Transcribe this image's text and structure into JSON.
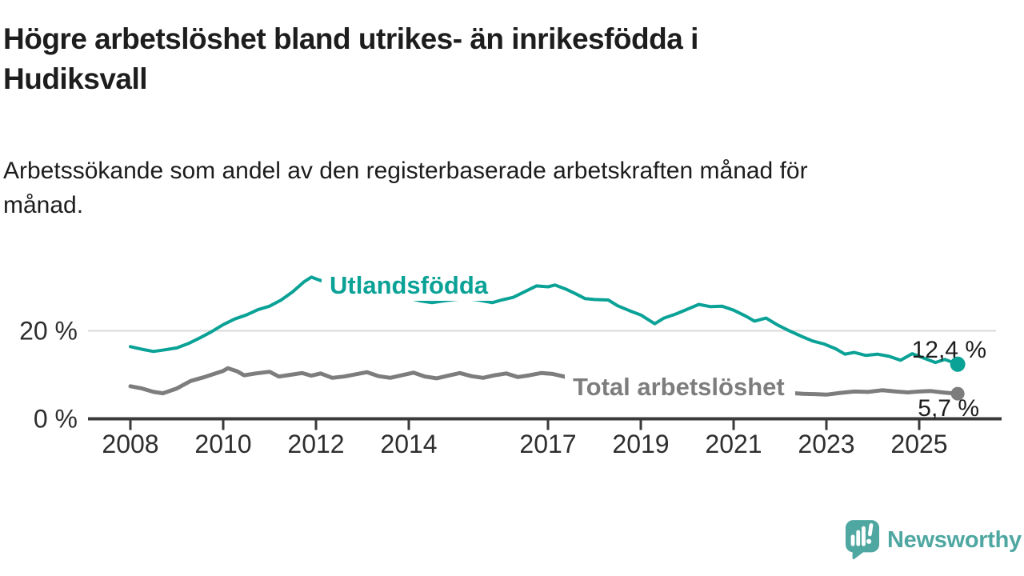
{
  "header": {
    "title_lines": [
      "Högre arbetslöshet bland utrikes- än inrikesfödda i",
      "Hudiksvall"
    ],
    "subtitle_lines": [
      "Arbetssökande som andel av den registerbaserade arbetskraften månad för",
      "månad."
    ]
  },
  "footer": {
    "brand": "Newsworthy",
    "logo_icon": "speech-bubble-bar-chart-icon",
    "brand_color": "#4FA7A1"
  },
  "chart_data": {
    "type": "line",
    "title": "Högre arbetslöshet bland utrikes- än inrikesfödda i Hudiksvall",
    "subtitle": "Arbetssökande som andel av den registerbaserade arbetskraften månad för månad.",
    "grid": "horizontal-20pct-only",
    "legend_position": "inline-labels-on-lines",
    "x_axis": {
      "range": [
        2008,
        2025.92
      ],
      "tick_labels": [
        "2008",
        "2010",
        "2012",
        "2014",
        "2017",
        "2019",
        "2021",
        "2023",
        "2025"
      ],
      "tick_years": [
        2008,
        2010,
        2012,
        2014,
        2017,
        2019,
        2021,
        2023,
        2025
      ]
    },
    "y_axis": {
      "range": [
        0,
        34
      ],
      "ticks": [
        {
          "value": 0,
          "label": "0 %"
        },
        {
          "value": 20,
          "label": "20 %"
        }
      ]
    },
    "series": [
      {
        "name": "Utlandsfödda",
        "color": "#0aa296",
        "line_width": 4,
        "end_label": "12,4 %",
        "end_value": 12.4,
        "points": [
          [
            2008.0,
            16.4
          ],
          [
            2008.25,
            15.8
          ],
          [
            2008.5,
            15.3
          ],
          [
            2008.75,
            15.7
          ],
          [
            2009.0,
            16.1
          ],
          [
            2009.25,
            17.1
          ],
          [
            2009.5,
            18.4
          ],
          [
            2009.75,
            19.8
          ],
          [
            2010.0,
            21.4
          ],
          [
            2010.25,
            22.7
          ],
          [
            2010.5,
            23.6
          ],
          [
            2010.75,
            24.8
          ],
          [
            2011.0,
            25.6
          ],
          [
            2011.25,
            27.0
          ],
          [
            2011.5,
            28.9
          ],
          [
            2011.75,
            31.2
          ],
          [
            2011.9,
            32.2
          ],
          [
            2012.1,
            31.4
          ],
          [
            2012.25,
            31.9
          ],
          [
            2012.4,
            31.1
          ],
          [
            2012.6,
            30.3
          ],
          [
            2012.75,
            30.7
          ],
          [
            2013.0,
            29.6
          ],
          [
            2013.25,
            29.2
          ],
          [
            2013.5,
            28.6
          ],
          [
            2013.75,
            28.0
          ],
          [
            2014.0,
            27.4
          ],
          [
            2014.25,
            26.8
          ],
          [
            2014.5,
            26.4
          ],
          [
            2014.75,
            26.8
          ],
          [
            2015.0,
            27.1
          ],
          [
            2015.25,
            27.3
          ],
          [
            2015.5,
            27.0
          ],
          [
            2015.8,
            26.4
          ],
          [
            2016.0,
            27.0
          ],
          [
            2016.25,
            27.6
          ],
          [
            2016.5,
            28.9
          ],
          [
            2016.75,
            30.2
          ],
          [
            2017.0,
            30.0
          ],
          [
            2017.15,
            30.4
          ],
          [
            2017.4,
            29.4
          ],
          [
            2017.6,
            28.4
          ],
          [
            2017.8,
            27.3
          ],
          [
            2018.0,
            27.1
          ],
          [
            2018.3,
            27.0
          ],
          [
            2018.5,
            25.7
          ],
          [
            2018.75,
            24.6
          ],
          [
            2019.0,
            23.6
          ],
          [
            2019.3,
            21.6
          ],
          [
            2019.5,
            22.9
          ],
          [
            2019.75,
            23.8
          ],
          [
            2020.0,
            24.9
          ],
          [
            2020.25,
            26.0
          ],
          [
            2020.5,
            25.5
          ],
          [
            2020.75,
            25.6
          ],
          [
            2021.0,
            24.7
          ],
          [
            2021.25,
            23.4
          ],
          [
            2021.45,
            22.2
          ],
          [
            2021.7,
            22.9
          ],
          [
            2021.95,
            21.3
          ],
          [
            2022.2,
            20.0
          ],
          [
            2022.45,
            18.8
          ],
          [
            2022.7,
            17.7
          ],
          [
            2022.95,
            17.0
          ],
          [
            2023.2,
            15.9
          ],
          [
            2023.4,
            14.7
          ],
          [
            2023.6,
            15.1
          ],
          [
            2023.85,
            14.4
          ],
          [
            2024.1,
            14.7
          ],
          [
            2024.35,
            14.2
          ],
          [
            2024.6,
            13.3
          ],
          [
            2024.85,
            14.8
          ],
          [
            2025.1,
            13.8
          ],
          [
            2025.35,
            12.8
          ],
          [
            2025.55,
            13.5
          ],
          [
            2025.83,
            12.4
          ]
        ]
      },
      {
        "name": "Total arbetslöshet",
        "color": "#7d7d7d",
        "line_width": 5,
        "end_label": "5,7 %",
        "end_value": 5.7,
        "points": [
          [
            2008.0,
            7.4
          ],
          [
            2008.25,
            6.9
          ],
          [
            2008.5,
            6.1
          ],
          [
            2008.7,
            5.8
          ],
          [
            2009.0,
            6.9
          ],
          [
            2009.3,
            8.6
          ],
          [
            2009.6,
            9.5
          ],
          [
            2010.0,
            10.9
          ],
          [
            2010.1,
            11.5
          ],
          [
            2010.3,
            10.8
          ],
          [
            2010.45,
            9.9
          ],
          [
            2010.7,
            10.3
          ],
          [
            2011.0,
            10.7
          ],
          [
            2011.2,
            9.6
          ],
          [
            2011.45,
            10.0
          ],
          [
            2011.7,
            10.4
          ],
          [
            2011.9,
            9.8
          ],
          [
            2012.1,
            10.3
          ],
          [
            2012.35,
            9.3
          ],
          [
            2012.6,
            9.6
          ],
          [
            2012.85,
            10.1
          ],
          [
            2013.1,
            10.6
          ],
          [
            2013.35,
            9.7
          ],
          [
            2013.6,
            9.3
          ],
          [
            2013.85,
            9.9
          ],
          [
            2014.1,
            10.5
          ],
          [
            2014.35,
            9.6
          ],
          [
            2014.6,
            9.2
          ],
          [
            2014.85,
            9.8
          ],
          [
            2015.1,
            10.4
          ],
          [
            2015.35,
            9.7
          ],
          [
            2015.6,
            9.3
          ],
          [
            2015.85,
            9.9
          ],
          [
            2016.1,
            10.3
          ],
          [
            2016.35,
            9.5
          ],
          [
            2016.6,
            9.9
          ],
          [
            2016.85,
            10.4
          ],
          [
            2017.1,
            10.2
          ],
          [
            2017.35,
            9.6
          ],
          [
            2017.5,
            8.9
          ],
          [
            2018.0,
            8.4
          ],
          [
            2018.5,
            8.0
          ],
          [
            2019.0,
            8.2
          ],
          [
            2019.5,
            7.8
          ],
          [
            2020.0,
            8.0
          ],
          [
            2020.4,
            8.6
          ],
          [
            2021.0,
            8.0
          ],
          [
            2021.5,
            7.2
          ],
          [
            2022.0,
            6.3
          ],
          [
            2022.2,
            5.9
          ],
          [
            2022.5,
            5.7
          ],
          [
            2022.8,
            5.6
          ],
          [
            2023.0,
            5.5
          ],
          [
            2023.3,
            5.9
          ],
          [
            2023.6,
            6.2
          ],
          [
            2023.9,
            6.1
          ],
          [
            2024.2,
            6.5
          ],
          [
            2024.5,
            6.2
          ],
          [
            2024.75,
            6.0
          ],
          [
            2025.0,
            6.2
          ],
          [
            2025.25,
            6.3
          ],
          [
            2025.5,
            6.0
          ],
          [
            2025.83,
            5.7
          ]
        ]
      }
    ]
  }
}
